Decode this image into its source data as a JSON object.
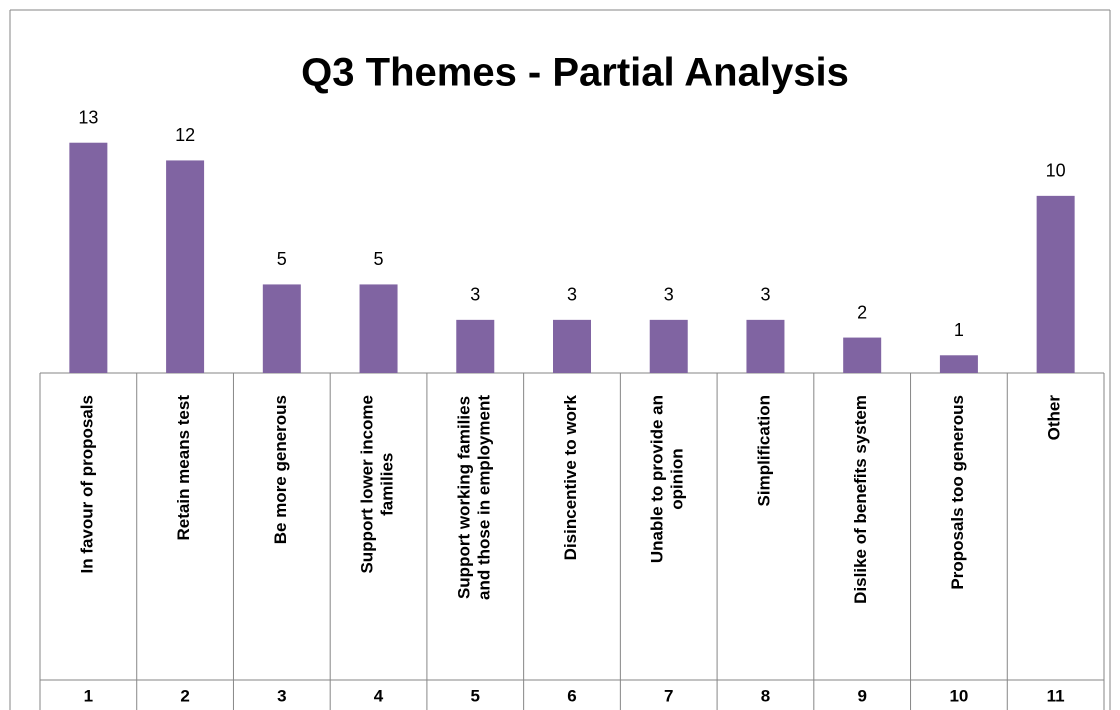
{
  "chart_data": {
    "type": "bar",
    "title": "Q3 Themes - Partial Analysis",
    "categories": [
      "In favour of proposals",
      "Retain means test",
      "Be more generous",
      "Support lower income families",
      "Support working families and those in employment",
      "Disincentive to work",
      "Unable to provide an opinion",
      "Simplification",
      "Dislike of benefits system",
      "Proposals too generous",
      "Other"
    ],
    "category_numbers": [
      1,
      2,
      3,
      4,
      5,
      6,
      7,
      8,
      9,
      10,
      11
    ],
    "values": [
      13,
      12,
      5,
      5,
      3,
      3,
      3,
      3,
      2,
      1,
      10
    ],
    "color": "#8064a2",
    "ylim": [
      0,
      14
    ]
  }
}
